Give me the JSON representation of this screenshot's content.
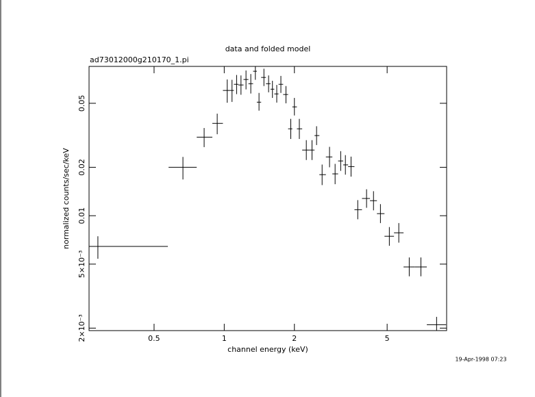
{
  "chart_data": {
    "type": "errorbar",
    "title": "data and folded model",
    "subtitle": "ad73012000g210170_1.pi",
    "x_label": "channel energy (keV)",
    "y_label": "normalized counts/sec/keV",
    "timestamp": "19-Apr-1998 07:23",
    "log_x": true,
    "log_y": true,
    "color": "#000000",
    "xlim": [
      0.263,
      9.0
    ],
    "ylim": [
      0.00193,
      0.0848
    ],
    "xticks": [
      0.5,
      1,
      2,
      5
    ],
    "yticks": [
      0.05,
      0.02,
      0.01,
      {
        "value": 0.005,
        "label": "5×10⁻³"
      },
      {
        "value": 0.002,
        "label": "2×10⁻³"
      }
    ],
    "series": [
      {
        "x": [
          0.287,
          0.665,
          0.82,
          0.933,
          1.03,
          1.08,
          1.13,
          1.18,
          1.24,
          1.3,
          1.36,
          1.41,
          1.48,
          1.55,
          1.61,
          1.68,
          1.75,
          1.84,
          1.93,
          2.0,
          2.1,
          2.25,
          2.38,
          2.49,
          2.63,
          2.83,
          2.99,
          3.16,
          3.31,
          3.5,
          3.74,
          4.08,
          4.37,
          4.68,
          5.11,
          5.61,
          6.22,
          6.98,
          8.15
        ],
        "x_lo": [
          0.263,
          0.577,
          0.762,
          0.889,
          0.987,
          1.06,
          1.1,
          1.15,
          1.21,
          1.27,
          1.33,
          1.38,
          1.44,
          1.51,
          1.58,
          1.64,
          1.71,
          1.79,
          1.88,
          1.96,
          2.05,
          2.16,
          2.32,
          2.44,
          2.56,
          2.73,
          2.91,
          3.08,
          3.24,
          3.4,
          3.62,
          3.9,
          4.22,
          4.52,
          4.87,
          5.35,
          5.88,
          6.58,
          7.4
        ],
        "x_hi": [
          0.573,
          0.762,
          0.889,
          0.987,
          1.06,
          1.1,
          1.15,
          1.21,
          1.27,
          1.33,
          1.38,
          1.44,
          1.51,
          1.58,
          1.64,
          1.71,
          1.79,
          1.88,
          1.96,
          2.05,
          2.16,
          2.32,
          2.44,
          2.56,
          2.73,
          2.91,
          3.08,
          3.24,
          3.4,
          3.62,
          3.9,
          4.22,
          4.52,
          4.87,
          5.35,
          5.88,
          6.58,
          7.4,
          8.95
        ],
        "y": [
          0.00644,
          0.02,
          0.0308,
          0.0375,
          0.0601,
          0.0601,
          0.0656,
          0.065,
          0.0703,
          0.0662,
          0.0791,
          0.0508,
          0.0724,
          0.0662,
          0.0612,
          0.0572,
          0.0656,
          0.0567,
          0.0347,
          0.0475,
          0.0347,
          0.0256,
          0.0256,
          0.0315,
          0.018,
          0.0232,
          0.0182,
          0.0219,
          0.0207,
          0.0202,
          0.0109,
          0.0128,
          0.0124,
          0.0103,
          0.00745,
          0.00783,
          0.0048,
          0.0048,
          0.0021
        ],
        "y_lo": [
          0.0054,
          0.0168,
          0.0267,
          0.0321,
          0.0504,
          0.051,
          0.057,
          0.0565,
          0.061,
          0.0575,
          0.07,
          0.045,
          0.064,
          0.0585,
          0.054,
          0.0505,
          0.058,
          0.05,
          0.03,
          0.042,
          0.03,
          0.0222,
          0.0222,
          0.0275,
          0.0155,
          0.02,
          0.0157,
          0.019,
          0.018,
          0.0175,
          0.0095,
          0.0112,
          0.0108,
          0.009,
          0.0065,
          0.0068,
          0.0042,
          0.0042,
          0.00193
        ],
        "y_hi": [
          0.00745,
          0.0232,
          0.0351,
          0.0431,
          0.0703,
          0.07,
          0.075,
          0.0745,
          0.08,
          0.076,
          0.0848,
          0.058,
          0.082,
          0.0745,
          0.069,
          0.065,
          0.074,
          0.064,
          0.04,
          0.054,
          0.04,
          0.0295,
          0.0295,
          0.036,
          0.0208,
          0.0268,
          0.021,
          0.0252,
          0.0238,
          0.0233,
          0.0125,
          0.0146,
          0.0142,
          0.0118,
          0.0085,
          0.009,
          0.0055,
          0.0055,
          0.00235
        ]
      }
    ]
  }
}
